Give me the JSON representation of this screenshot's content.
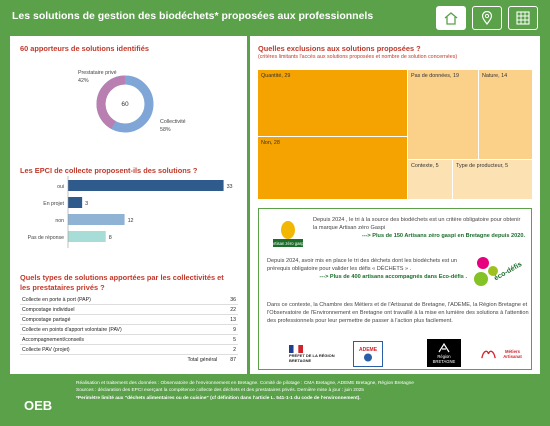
{
  "header": {
    "title": "Les solutions de gestion des biodéchets* proposées aux professionnels",
    "nav": [
      {
        "name": "home-icon"
      },
      {
        "name": "map-pin-icon"
      },
      {
        "name": "grid-icon"
      }
    ]
  },
  "donut": {
    "title": "60 apporteurs de solutions identifiés",
    "center": "60",
    "label_prestataire": "Prestataire privé",
    "pct_prestataire": "42%",
    "label_collectivite": "Collectivité",
    "pct_collectivite": "58%",
    "color_prestataire": "#b97fb1",
    "color_collectivite": "#7fa6d6"
  },
  "epci": {
    "title": "Les EPCI de collecte proposent-ils des solutions ?",
    "categories": [
      "oui",
      "En projet",
      "non",
      "Pas de réponse"
    ],
    "values": [
      33,
      3,
      12,
      8
    ],
    "labels": [
      "33",
      "3",
      "12",
      "8"
    ],
    "colors": [
      "#2e5b8c",
      "#2e5b8c",
      "#8fb3d4",
      "#a8dcd6"
    ]
  },
  "types": {
    "title": "Quels types de solutions apportées par les collectivités et les prestataires privés ?",
    "rows": [
      {
        "label": "Collecte en porte à port (PAP)",
        "value": "36"
      },
      {
        "label": "Compostage individuel",
        "value": "22"
      },
      {
        "label": "Compostage partagé",
        "value": "13"
      },
      {
        "label": "Collecte en points d'apport volontaire (PAV)",
        "value": "9"
      },
      {
        "label": "Accompagnement/conseils",
        "value": "5"
      },
      {
        "label": "Collecte PAV (projet)",
        "value": "2"
      }
    ],
    "total_label": "Total général",
    "total_value": "87"
  },
  "exclusions": {
    "title": "Quelles exclusions aux solutions proposées ?",
    "subtitle": "(critères limitants l'accès aux solutions proposées et nombre de solution concernées)",
    "cells": [
      {
        "label": "Quantité, 29"
      },
      {
        "label": "Non, 28"
      },
      {
        "label": "Pas de données, 19"
      },
      {
        "label": "Nature, 14"
      },
      {
        "label": "Contexte, 5"
      },
      {
        "label": "Type de producteur, 5"
      }
    ]
  },
  "info": {
    "p1": "Depuis 2024 , le tri à la source des biodéchets est un critère obligatoire pour obtenir la marque Artisan zéro Gaspi",
    "p1_link": "---> Plus de 150 Artisans zéro gaspi en Bretagne depuis 2020.",
    "p2": "Depuis 2024, avoir mis en place le tri des déchets dont les biodéchets est un prérequis obligatoire pour valider les défis « DÉCHETS » .",
    "p2_link": "---> Plus de 400 artisans accompagnés dans Eco-défis .",
    "p3": "Dans ce contexte, la Chambre des Métiers et de l'Artisanat de Bretagne, l'ADEME, la Région Bretagne et l'Observatoire de l'Environnement en Bretagne ont travaillé à la mise en lumière des solutions à l'attention des professionnels pour leur permettre de passer à l'action plus facilement.",
    "logo_artisan": "Artisan zéro gaspi",
    "logo_ecodefis": "éco-défis",
    "logos": [
      "PRÉFET DE LA RÉGION BRETAGNE",
      "ADEME",
      "Région BRETAGNE",
      "Métiers Artisanat"
    ]
  },
  "footer": {
    "line1": "Réalisation et traitement des données : Observatoire de l'environnement en Bretagne. Comité de pilotage : CMA Bretagne, ADEME Bretagne, Région Bretagne",
    "line2": "Sources : déclaration des EPCI exerçant la compétence collecte des déchets et des prestataires privés. Dernière mise à jour : juin 2025",
    "line3": "*Perimètre limité aux \"déchets alimentaires ou de cuisine\" (cf définition dans l'article L. 541-1-1 du code de l'environnement).",
    "logo": "OEB"
  }
}
